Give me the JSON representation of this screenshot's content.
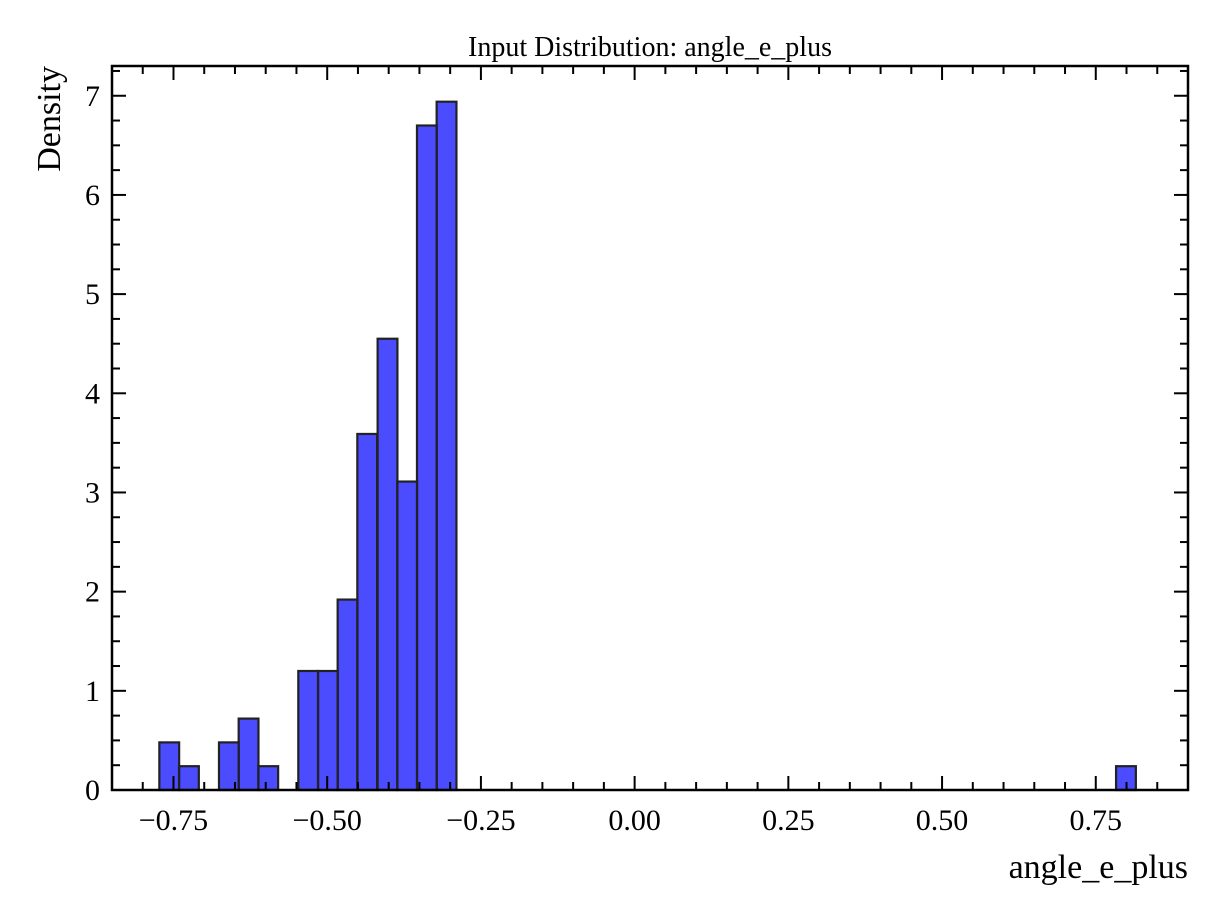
{
  "chart_data": {
    "type": "bar",
    "title": "Input Distribution: angle_e_plus",
    "xlabel": "angle_e_plus",
    "ylabel": "Density",
    "xlim": [
      -0.85,
      0.9
    ],
    "ylim": [
      0,
      7.3
    ],
    "grid": false,
    "legend": "none",
    "bin_width": 0.0322,
    "xticks": [
      {
        "value": -0.75,
        "label": "−0.75"
      },
      {
        "value": -0.5,
        "label": "−0.50"
      },
      {
        "value": -0.25,
        "label": "−0.25"
      },
      {
        "value": 0.0,
        "label": "0.00"
      },
      {
        "value": 0.25,
        "label": "0.25"
      },
      {
        "value": 0.5,
        "label": "0.50"
      },
      {
        "value": 0.75,
        "label": "0.75"
      }
    ],
    "yticks": [
      {
        "value": 0,
        "label": "0"
      },
      {
        "value": 1,
        "label": "1"
      },
      {
        "value": 2,
        "label": "2"
      },
      {
        "value": 3,
        "label": "3"
      },
      {
        "value": 4,
        "label": "4"
      },
      {
        "value": 5,
        "label": "5"
      },
      {
        "value": 6,
        "label": "6"
      },
      {
        "value": 7,
        "label": "7"
      }
    ],
    "bins": [
      {
        "x": -0.773,
        "value": 0.48
      },
      {
        "x": -0.741,
        "value": 0.24
      },
      {
        "x": -0.676,
        "value": 0.48
      },
      {
        "x": -0.644,
        "value": 0.72
      },
      {
        "x": -0.612,
        "value": 0.24
      },
      {
        "x": -0.547,
        "value": 1.2
      },
      {
        "x": -0.515,
        "value": 1.2
      },
      {
        "x": -0.483,
        "value": 1.92
      },
      {
        "x": -0.451,
        "value": 3.59
      },
      {
        "x": -0.418,
        "value": 4.55
      },
      {
        "x": -0.386,
        "value": 3.11
      },
      {
        "x": -0.354,
        "value": 6.7
      },
      {
        "x": -0.322,
        "value": 6.94
      },
      {
        "x": 0.783,
        "value": 0.24
      }
    ],
    "colors": {
      "bar_fill": "#0000ff",
      "bar_fill_opacity": 0.7,
      "bar_edge": "#222222",
      "axes": "#000000"
    }
  }
}
